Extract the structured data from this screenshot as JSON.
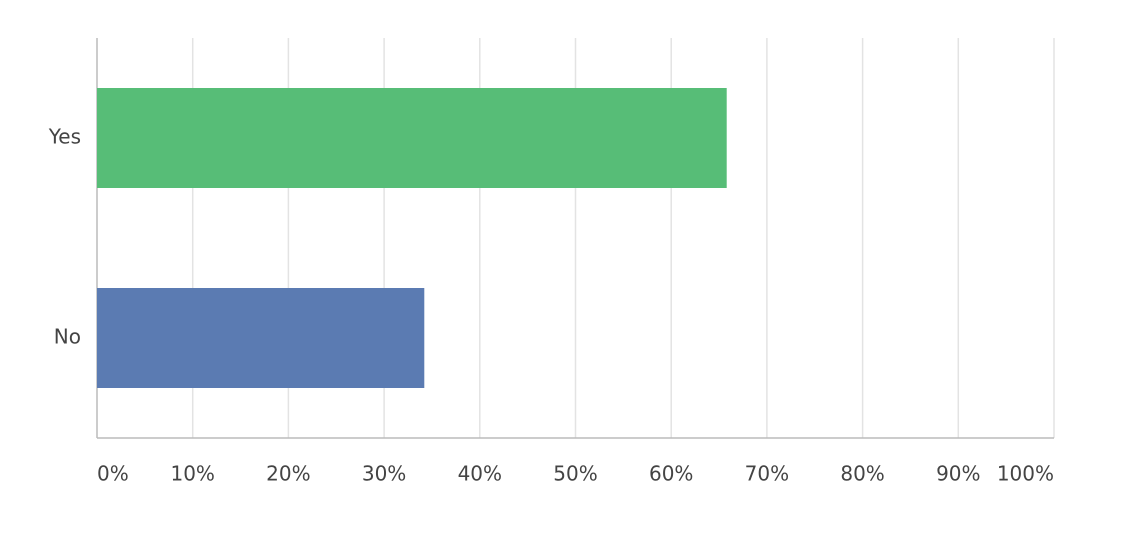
{
  "chart_data": {
    "type": "hbar",
    "categories": [
      "Yes",
      "No"
    ],
    "values": [
      65.8,
      34.2
    ],
    "colors": [
      "#57bd77",
      "#5b7bb2"
    ],
    "xlim": [
      0,
      100
    ],
    "xticks": [
      {
        "value": 0,
        "label": "0%"
      },
      {
        "value": 10,
        "label": "10%"
      },
      {
        "value": 20,
        "label": "20%"
      },
      {
        "value": 30,
        "label": "30%"
      },
      {
        "value": 40,
        "label": "40%"
      },
      {
        "value": 50,
        "label": "50%"
      },
      {
        "value": 60,
        "label": "60%"
      },
      {
        "value": 70,
        "label": "70%"
      },
      {
        "value": 80,
        "label": "80%"
      },
      {
        "value": 90,
        "label": "90%"
      },
      {
        "value": 100,
        "label": "100%"
      }
    ],
    "grid": true
  }
}
